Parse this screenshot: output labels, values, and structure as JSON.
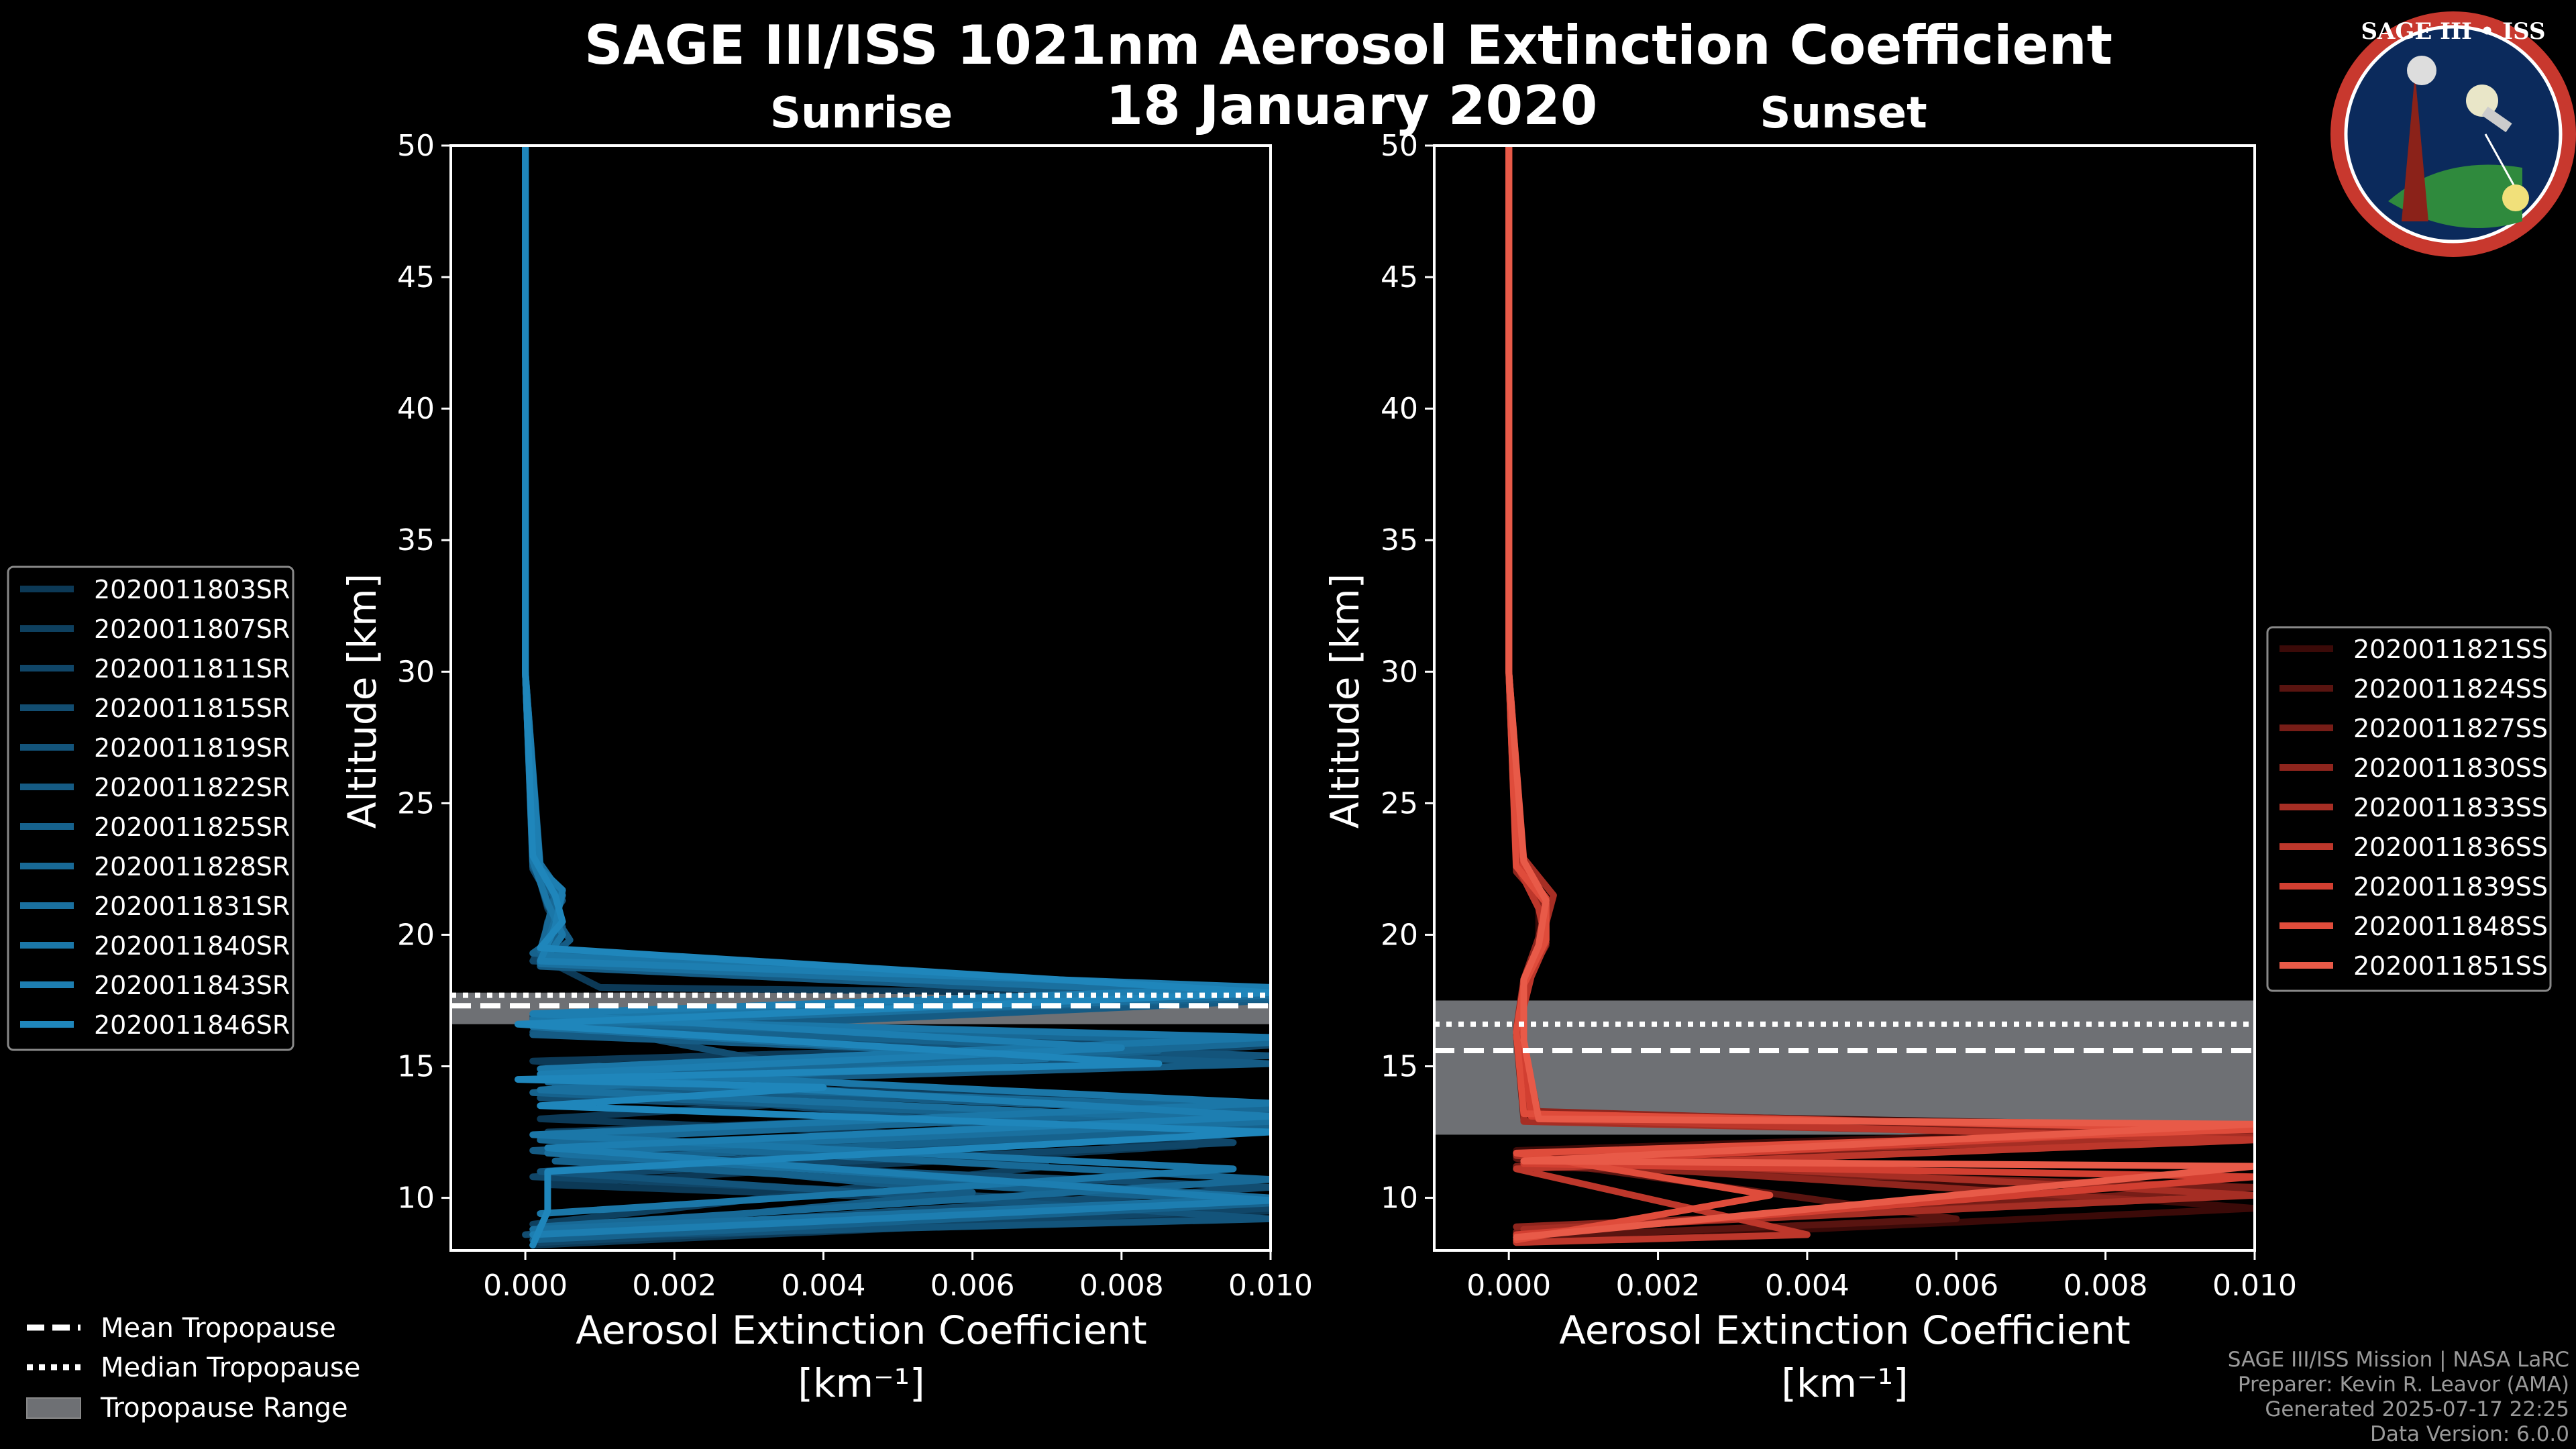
{
  "title": "SAGE III/ISS 1021nm Aerosol Extinction Coefficient",
  "subtitle": "18 January 2020",
  "logo": {
    "text": "SAGE III • ISS"
  },
  "credits": [
    "SAGE III/ISS Mission | NASA LaRC",
    "Preparer: Kevin R. Leavor (AMA)",
    "Generated 2025-07-17 22:25",
    "Data Version: 6.0.0"
  ],
  "tropopause_legend": [
    "Mean Tropopause",
    "Median Tropopause",
    "Tropopause Range"
  ],
  "chart_data": [
    {
      "type": "line",
      "panel": "sunrise",
      "title": "Sunrise",
      "xlabel": "Aerosol Extinction Coefficient",
      "xlabel_units": "[km⁻¹]",
      "ylabel": "Altitude [km]",
      "xlim": [
        -0.001,
        0.01
      ],
      "ylim": [
        8,
        50
      ],
      "xticks": [
        0,
        0.002,
        0.004,
        0.006,
        0.008,
        0.01
      ],
      "xtick_labels": [
        "0.000",
        "0.002",
        "0.004",
        "0.006",
        "0.008",
        "0.010"
      ],
      "yticks": [
        10,
        15,
        20,
        25,
        30,
        35,
        40,
        45,
        50
      ],
      "tropopause": {
        "mean": 17.3,
        "median": 17.7,
        "range": [
          16.6,
          17.8
        ]
      },
      "legend_position": "left",
      "series": [
        {
          "name": "2020011803SR",
          "color": "#0c3956",
          "x": [
            0.0,
            0.0,
            0.0001,
            0.0003,
            0.0005,
            0.0003,
            0.001,
            0.01,
            0.0002,
            0.01,
            0.0001,
            0.006,
            0.0002,
            0.009,
            0.0003,
            0.01,
            0.0001
          ],
          "y": [
            50,
            30,
            23,
            21,
            20,
            19,
            18,
            17.7,
            16.5,
            16,
            15.2,
            14,
            13,
            12,
            10.5,
            9.5,
            8.2
          ]
        },
        {
          "name": "2020011807SR",
          "color": "#0e405f",
          "x": [
            0.0,
            0.0,
            0.0001,
            0.0004,
            0.0004,
            0.0002,
            0.01,
            0.0001,
            0.0085,
            0.0002,
            0.01,
            0.0003,
            0.007,
            0.0001
          ],
          "y": [
            50,
            30,
            22.8,
            21.2,
            20.2,
            19.2,
            17.9,
            16.8,
            15.5,
            14.5,
            13.5,
            12.5,
            11.2,
            9
          ]
        },
        {
          "name": "2020011811SR",
          "color": "#104668",
          "x": [
            0.0,
            0.0,
            0.0001,
            0.0005,
            0.0003,
            0.0001,
            0.01,
            0.0002,
            0.01,
            0.0004,
            0.0095,
            0.0001,
            0.01,
            0.0002
          ],
          "y": [
            50,
            30,
            23,
            21.5,
            20,
            19,
            17.8,
            16.4,
            15.8,
            14.2,
            12.1,
            10.8,
            9.6,
            8.3
          ]
        },
        {
          "name": "2020011815SR",
          "color": "#124d71",
          "x": [
            0.0,
            0.0,
            0.0001,
            0.0004,
            0.0005,
            0.0002,
            0.01,
            0.0001,
            0.004,
            0.0002,
            0.01,
            0.0005,
            0.01,
            0.0
          ],
          "y": [
            50,
            30,
            22.5,
            21,
            20.3,
            19,
            17.7,
            16.9,
            14.8,
            13.8,
            13,
            11.5,
            10.4,
            8.6
          ]
        },
        {
          "name": "2020011819SR",
          "color": "#13547b",
          "x": [
            0.0,
            0.0,
            0.0002,
            0.0005,
            0.0003,
            0.0002,
            0.01,
            0.0001,
            0.01,
            0.0003,
            0.0075,
            0.0002,
            0.01,
            0.0002
          ],
          "y": [
            50,
            30,
            22.7,
            21.3,
            20.5,
            19.1,
            17.6,
            16.3,
            15.4,
            14.6,
            12.3,
            11,
            9.2,
            8.5
          ]
        },
        {
          "name": "2020011822SR",
          "color": "#155b84",
          "x": [
            0.0,
            0.0,
            0.0001,
            0.0003,
            0.0006,
            0.0002,
            0.01,
            0.0001,
            0.01,
            0.0004,
            0.01,
            0.0001,
            0.006,
            0.0003
          ],
          "y": [
            50,
            30,
            22.9,
            21.1,
            19.8,
            18.8,
            17.5,
            16.2,
            15.1,
            14.3,
            13.2,
            11.8,
            10.2,
            8.7
          ]
        },
        {
          "name": "2020011825SR",
          "color": "#16628d",
          "x": [
            0.0,
            0.0,
            0.0001,
            0.0004,
            0.0005,
            0.0001,
            0.01,
            0.0002,
            0.0085,
            0.0001,
            0.01,
            0.0004,
            0.01,
            0.0001
          ],
          "y": [
            50,
            30,
            22.6,
            21.4,
            20.1,
            19.3,
            17.6,
            16.6,
            15.6,
            14,
            12.7,
            11.4,
            9.8,
            8.4
          ]
        },
        {
          "name": "2020011828SR",
          "color": "#186996",
          "x": [
            0.0,
            0.0,
            0.0002,
            0.0004,
            0.0003,
            0.0002,
            0.01,
            0.0001,
            0.01,
            0.0003,
            0.01,
            0.0002,
            0.01,
            0.0002
          ],
          "y": [
            50,
            30,
            22.4,
            21.6,
            20.4,
            19.4,
            17.8,
            16.7,
            15.9,
            14.4,
            13.4,
            12.2,
            10.7,
            8.9
          ]
        },
        {
          "name": "2020011831SR",
          "color": "#1a709f",
          "x": [
            0.0,
            0.0,
            0.0001,
            0.0005,
            0.0004,
            0.0002,
            0.01,
            0.0001,
            0.007,
            0.0002,
            0.01,
            0.0003,
            0.01,
            0.0001
          ],
          "y": [
            50,
            30,
            23.1,
            21.5,
            20.6,
            18.9,
            17.7,
            16.5,
            15.3,
            14.1,
            12.9,
            11.7,
            10,
            8.8
          ]
        },
        {
          "name": "2020011840SR",
          "color": "#1b77a8",
          "x": [
            0.0,
            0.0,
            0.0001,
            0.0003,
            0.0005,
            0.0003,
            0.01,
            0.0001,
            0.01,
            0.0002,
            0.01,
            0.0001,
            0.0095,
            0.0002
          ],
          "y": [
            50,
            30,
            22.8,
            21.2,
            20,
            19.2,
            17.9,
            16.8,
            16.1,
            14.9,
            13.6,
            12.4,
            11.1,
            9.4
          ]
        },
        {
          "name": "2020011843SR",
          "color": "#1d7eb1",
          "x": [
            0.0,
            0.0,
            0.0002,
            0.0005,
            0.0004,
            0.0002,
            0.01,
            0.0001,
            0.008,
            0.0002,
            0.01,
            0.0003,
            0.01,
            0.0001
          ],
          "y": [
            50,
            30,
            22.5,
            21.7,
            20.3,
            19,
            18,
            17,
            15.7,
            14.7,
            13.1,
            11.9,
            9.9,
            8.6
          ]
        },
        {
          "name": "2020011846SR",
          "color": "#1f86bb",
          "x": [
            0.0,
            0.0,
            0.0001,
            0.0004,
            0.0005,
            0.0002,
            0.01,
            -0.0001,
            0.0085,
            -0.0001,
            0.004,
            0.0002,
            0.01,
            0.0003,
            0.0003,
            0.0001
          ],
          "y": [
            50,
            30,
            23,
            21.5,
            20.5,
            19.5,
            17.8,
            16.6,
            15.1,
            14.5,
            14.2,
            13.5,
            12.5,
            11,
            9.5,
            8.2
          ]
        }
      ]
    },
    {
      "type": "line",
      "panel": "sunset",
      "title": "Sunset",
      "xlabel": "Aerosol Extinction Coefficient",
      "xlabel_units": "[km⁻¹]",
      "ylabel": "Altitude [km]",
      "xlim": [
        -0.001,
        0.01
      ],
      "ylim": [
        8,
        50
      ],
      "xticks": [
        0,
        0.002,
        0.004,
        0.006,
        0.008,
        0.01
      ],
      "xtick_labels": [
        "0.000",
        "0.002",
        "0.004",
        "0.006",
        "0.008",
        "0.010"
      ],
      "yticks": [
        10,
        15,
        20,
        25,
        30,
        35,
        40,
        45,
        50
      ],
      "tropopause": {
        "mean": 15.6,
        "median": 16.6,
        "range": [
          12.4,
          17.5
        ]
      },
      "legend_position": "right",
      "series": [
        {
          "name": "2020011821SS",
          "color": "#3b0a08",
          "x": [
            0.0,
            0.0,
            0.0002,
            0.0004,
            0.0004,
            0.0002,
            0.0002,
            0.0003,
            0.01,
            0.0001,
            0.01,
            0.0002
          ],
          "y": [
            50,
            30,
            22.5,
            21,
            19.5,
            18,
            16,
            13.2,
            12.7,
            11.8,
            9.6,
            8.3
          ]
        },
        {
          "name": "2020011824SS",
          "color": "#591410",
          "x": [
            0.0,
            0.0,
            0.0001,
            0.0005,
            0.0005,
            0.0002,
            0.0001,
            0.0002,
            0.01,
            0.0001,
            0.006,
            0.0002
          ],
          "y": [
            50,
            30,
            22.8,
            21.2,
            19.8,
            18.2,
            16.2,
            13,
            12.4,
            11.5,
            9.2,
            8.5
          ]
        },
        {
          "name": "2020011827SS",
          "color": "#771d17",
          "x": [
            0.0,
            0.0,
            0.0002,
            0.0004,
            0.0005,
            0.0002,
            0.0002,
            0.0004,
            0.01,
            0.0001,
            0.01,
            0.0001
          ],
          "y": [
            50,
            30,
            22.6,
            21.3,
            19.6,
            18.1,
            15.8,
            13.1,
            12.6,
            11.2,
            10.4,
            8.7
          ]
        },
        {
          "name": "2020011830SS",
          "color": "#8e251d",
          "x": [
            0.0,
            0.0,
            0.0001,
            0.0005,
            0.0004,
            0.0002,
            0.0001,
            0.0002,
            0.01,
            0.0002,
            0.0085,
            0.0001
          ],
          "y": [
            50,
            30,
            22.4,
            21.1,
            19.9,
            18.3,
            16.4,
            13.3,
            12.5,
            11.4,
            9.9,
            8.9
          ]
        },
        {
          "name": "2020011833SS",
          "color": "#a62e24",
          "x": [
            0.0,
            0.0,
            0.0002,
            0.0006,
            0.0004,
            0.0002,
            0.0002,
            0.0002,
            0.01,
            0.0001,
            0.01,
            0.0002
          ],
          "y": [
            50,
            30,
            22.9,
            21.5,
            19.4,
            18,
            15.9,
            12.9,
            12.3,
            11.6,
            10.1,
            8.8
          ]
        },
        {
          "name": "2020011836SS",
          "color": "#bd372b",
          "x": [
            0.0,
            0.0,
            0.0001,
            0.0004,
            0.0005,
            0.0003,
            0.0001,
            0.0004,
            0.01,
            0.0001,
            0.004,
            0.0001
          ],
          "y": [
            50,
            30,
            22.7,
            21,
            19.7,
            18.4,
            16.1,
            13,
            12.2,
            11.1,
            8.6,
            8.3
          ]
        },
        {
          "name": "2020011839SS",
          "color": "#d23f31",
          "x": [
            0.0,
            0.0,
            0.0002,
            0.0005,
            0.0004,
            0.0002,
            0.0002,
            0.0003,
            0.01,
            0.0002,
            0.01,
            0.0001
          ],
          "y": [
            50,
            30,
            22.5,
            21.4,
            19.5,
            18.2,
            15.7,
            13.1,
            12.7,
            11.3,
            10.8,
            8.6
          ]
        },
        {
          "name": "2020011848SS",
          "color": "#df4c3b",
          "x": [
            0.0,
            0.0,
            0.0001,
            0.0005,
            0.0005,
            0.0002,
            0.0001,
            0.0002,
            0.01,
            0.0001,
            0.0035,
            0.0001
          ],
          "y": [
            50,
            30,
            22.6,
            21.2,
            19.8,
            18.1,
            16.3,
            13.2,
            12.6,
            11.7,
            10.1,
            8.4
          ]
        },
        {
          "name": "2020011851SS",
          "color": "#e85a48",
          "x": [
            0.0,
            0.0,
            0.0002,
            0.0005,
            0.0004,
            0.0002,
            0.0002,
            0.0004,
            0.01,
            0.0002,
            0.01,
            0.0001
          ],
          "y": [
            50,
            30,
            22.8,
            21.3,
            19.6,
            18.3,
            16,
            13,
            12.8,
            11.4,
            11.2,
            8.5
          ]
        }
      ]
    }
  ]
}
